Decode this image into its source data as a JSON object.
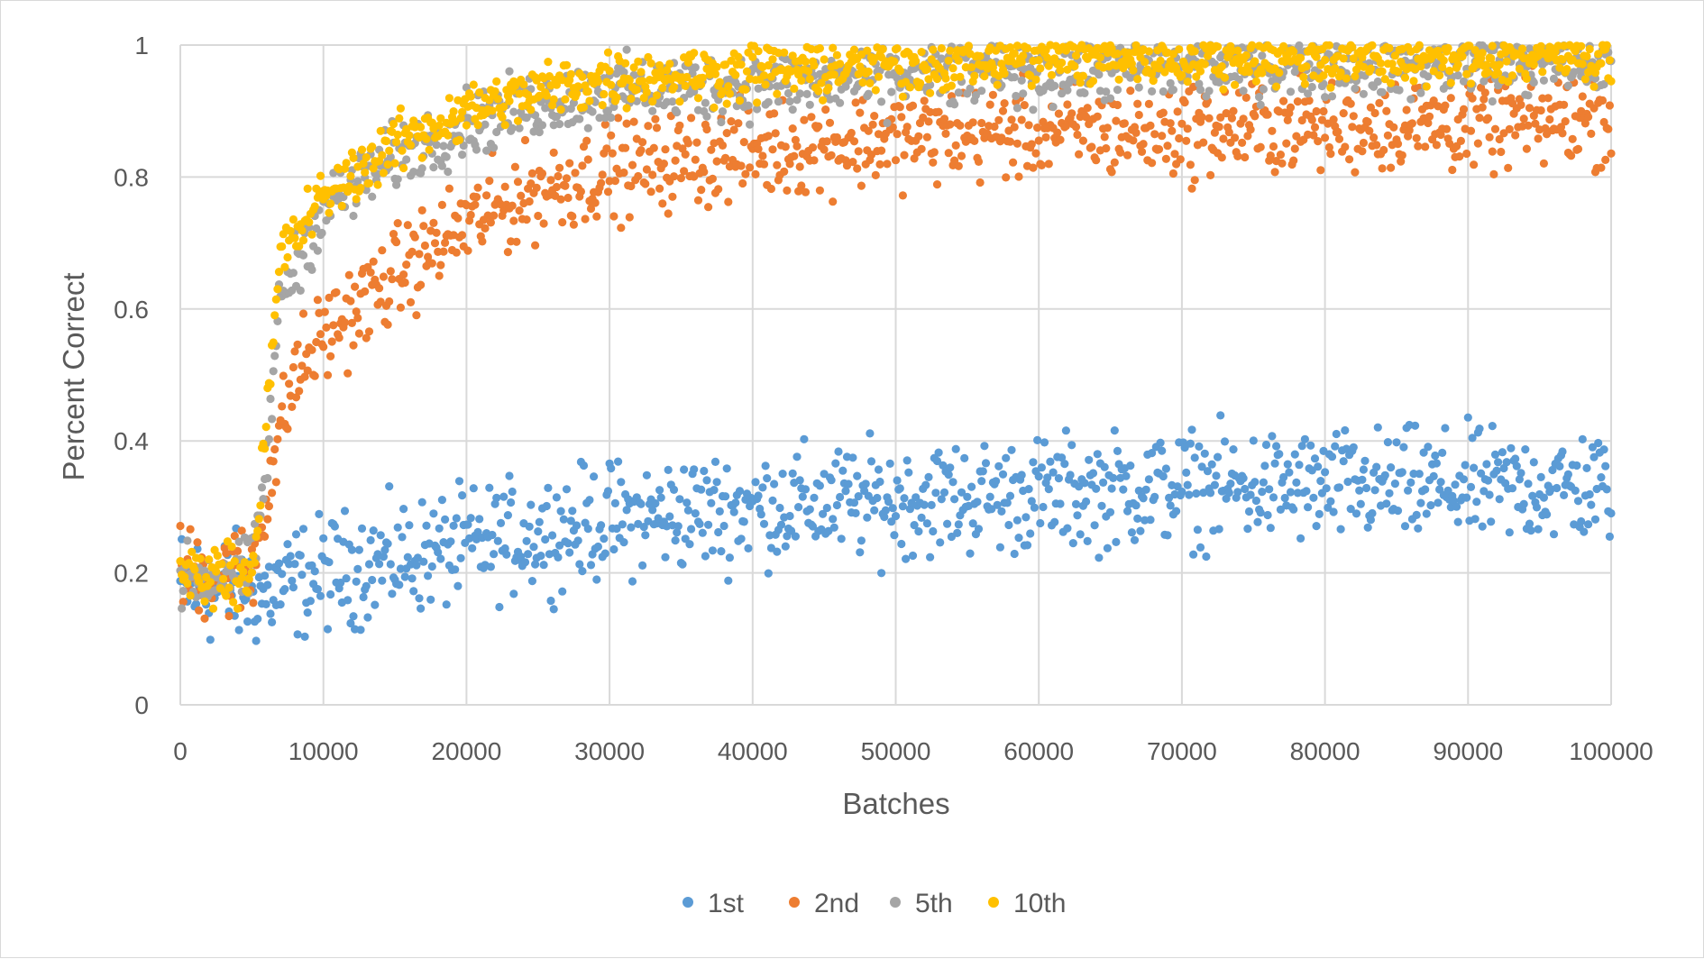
{
  "chart_data": {
    "type": "scatter",
    "title": "",
    "xlabel": "Batches",
    "ylabel": "Percent Correct",
    "xlim": [
      0,
      100000
    ],
    "ylim": [
      0,
      1
    ],
    "x_ticks": [
      "0",
      "10000",
      "20000",
      "30000",
      "40000",
      "50000",
      "60000",
      "70000",
      "80000",
      "90000",
      "100000"
    ],
    "y_ticks": [
      "0",
      "0.2",
      "0.4",
      "0.6",
      "0.8",
      "1"
    ],
    "grid": true,
    "legend_position": "bottom",
    "point_interval": 100,
    "series": [
      {
        "name": "1st",
        "color": "#5B9BD5",
        "trend": [
          [
            0,
            0.18
          ],
          [
            6000,
            0.17
          ],
          [
            10000,
            0.2
          ],
          [
            20000,
            0.24
          ],
          [
            30000,
            0.28
          ],
          [
            40000,
            0.3
          ],
          [
            50000,
            0.31
          ],
          [
            60000,
            0.32
          ],
          [
            70000,
            0.33
          ],
          [
            80000,
            0.33
          ],
          [
            90000,
            0.33
          ],
          [
            100000,
            0.33
          ]
        ],
        "spread": 0.06
      },
      {
        "name": "2nd",
        "color": "#ED7D31",
        "trend": [
          [
            0,
            0.2
          ],
          [
            5000,
            0.2
          ],
          [
            6000,
            0.32
          ],
          [
            8000,
            0.5
          ],
          [
            10000,
            0.56
          ],
          [
            15000,
            0.65
          ],
          [
            20000,
            0.73
          ],
          [
            25000,
            0.78
          ],
          [
            30000,
            0.81
          ],
          [
            40000,
            0.84
          ],
          [
            50000,
            0.86
          ],
          [
            60000,
            0.87
          ],
          [
            70000,
            0.87
          ],
          [
            80000,
            0.88
          ],
          [
            90000,
            0.88
          ],
          [
            100000,
            0.89
          ]
        ],
        "spread": 0.05
      },
      {
        "name": "5th",
        "color": "#A5A5A5",
        "trend": [
          [
            0,
            0.19
          ],
          [
            5000,
            0.2
          ],
          [
            6000,
            0.36
          ],
          [
            7000,
            0.62
          ],
          [
            10000,
            0.75
          ],
          [
            15000,
            0.83
          ],
          [
            20000,
            0.88
          ],
          [
            25000,
            0.91
          ],
          [
            30000,
            0.93
          ],
          [
            40000,
            0.94
          ],
          [
            50000,
            0.95
          ],
          [
            60000,
            0.96
          ],
          [
            80000,
            0.97
          ],
          [
            100000,
            0.97
          ]
        ],
        "spread": 0.035
      },
      {
        "name": "10th",
        "color": "#FFC000",
        "trend": [
          [
            0,
            0.2
          ],
          [
            5000,
            0.2
          ],
          [
            6000,
            0.42
          ],
          [
            7000,
            0.68
          ],
          [
            10000,
            0.77
          ],
          [
            15000,
            0.85
          ],
          [
            20000,
            0.9
          ],
          [
            25000,
            0.93
          ],
          [
            30000,
            0.95
          ],
          [
            40000,
            0.96
          ],
          [
            50000,
            0.97
          ],
          [
            60000,
            0.98
          ],
          [
            80000,
            0.98
          ],
          [
            100000,
            0.98
          ]
        ],
        "spread": 0.03
      }
    ],
    "legend": [
      "1st",
      "2nd",
      "5th",
      "10th"
    ]
  }
}
